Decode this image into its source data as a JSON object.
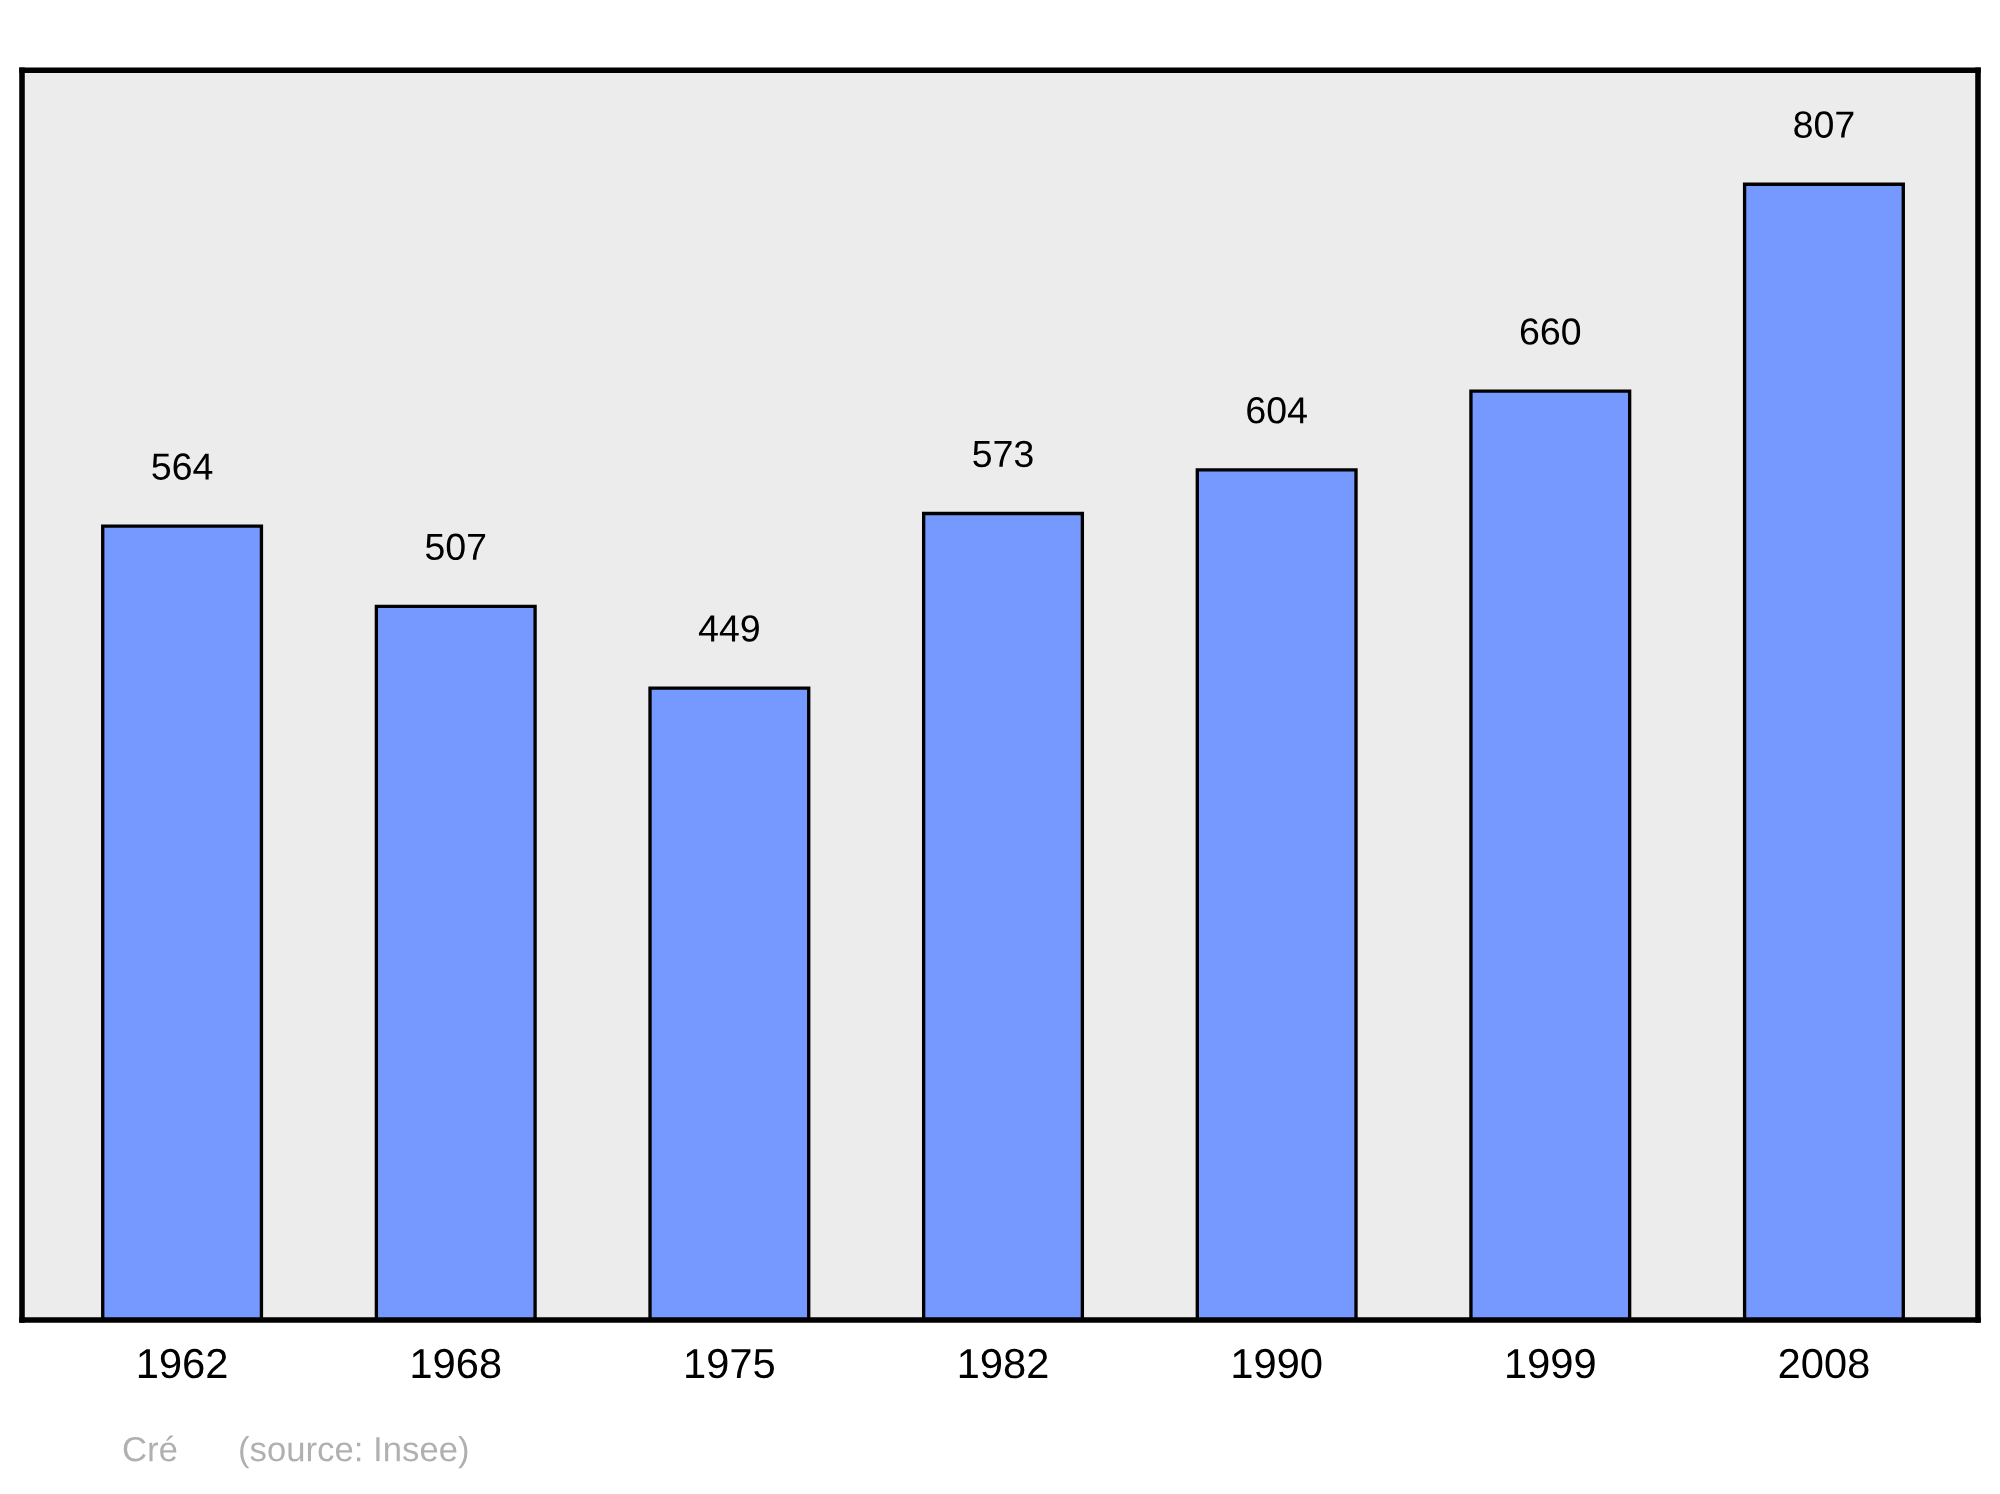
{
  "chart_data": {
    "type": "bar",
    "categories": [
      "1962",
      "1968",
      "1975",
      "1982",
      "1990",
      "1999",
      "2008"
    ],
    "values": [
      564,
      507,
      449,
      573,
      604,
      660,
      807
    ],
    "color": "#7599ff",
    "ylim": [
      0,
      888
    ],
    "data_labels": true,
    "grid": false,
    "legend": false,
    "annotations": [
      "Cré",
      "(source: Insee)"
    ]
  }
}
